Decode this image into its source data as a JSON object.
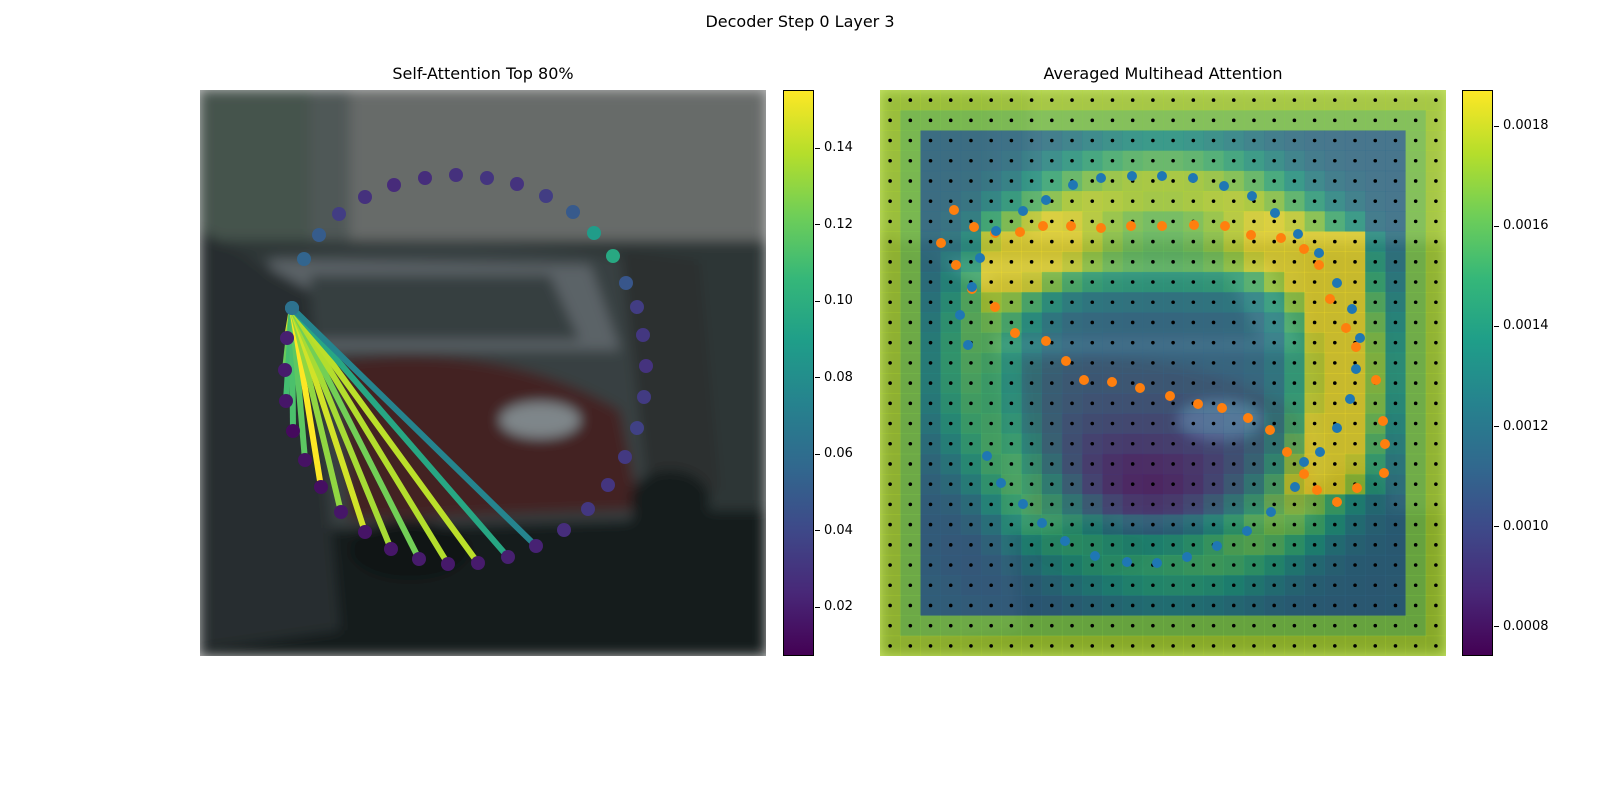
{
  "figure_title": "Decoder Step 0 Layer 3",
  "colors": {
    "viridis": [
      "#440154",
      "#482878",
      "#3e4989",
      "#31688e",
      "#26828e",
      "#1f9e89",
      "#35b779",
      "#6ece58",
      "#b5de2b",
      "#fde725"
    ],
    "query_points": "#1f77b4",
    "reference_points": "#ff7f0e",
    "grid_dots": "#000000"
  },
  "chart_data": [
    {
      "type": "scatter",
      "title": "Self-Attention Top 80%",
      "background": "camera-image-parked-cars",
      "source_query_index": 0,
      "queries": [
        {
          "x": 92,
          "y": 218,
          "weight": 0.062
        },
        {
          "x": 87,
          "y": 248,
          "weight": 0.02
        },
        {
          "x": 85,
          "y": 280,
          "weight": 0.018
        },
        {
          "x": 86,
          "y": 311,
          "weight": 0.016
        },
        {
          "x": 93,
          "y": 341,
          "weight": 0.011
        },
        {
          "x": 105,
          "y": 370,
          "weight": 0.014
        },
        {
          "x": 121,
          "y": 397,
          "weight": 0.013
        },
        {
          "x": 141,
          "y": 422,
          "weight": 0.016
        },
        {
          "x": 165,
          "y": 442,
          "weight": 0.015
        },
        {
          "x": 191,
          "y": 459,
          "weight": 0.016
        },
        {
          "x": 219,
          "y": 469,
          "weight": 0.018
        },
        {
          "x": 248,
          "y": 474,
          "weight": 0.017
        },
        {
          "x": 278,
          "y": 473,
          "weight": 0.018
        },
        {
          "x": 308,
          "y": 467,
          "weight": 0.02
        },
        {
          "x": 336,
          "y": 456,
          "weight": 0.021
        },
        {
          "x": 364,
          "y": 440,
          "weight": 0.026
        },
        {
          "x": 388,
          "y": 419,
          "weight": 0.031
        },
        {
          "x": 408,
          "y": 395,
          "weight": 0.03
        },
        {
          "x": 425,
          "y": 367,
          "weight": 0.032
        },
        {
          "x": 437,
          "y": 338,
          "weight": 0.036
        },
        {
          "x": 444,
          "y": 307,
          "weight": 0.033
        },
        {
          "x": 446,
          "y": 276,
          "weight": 0.029
        },
        {
          "x": 443,
          "y": 245,
          "weight": 0.031
        },
        {
          "x": 437,
          "y": 217,
          "weight": 0.034
        },
        {
          "x": 426,
          "y": 193,
          "weight": 0.047
        },
        {
          "x": 413,
          "y": 166,
          "weight": 0.096
        },
        {
          "x": 394,
          "y": 143,
          "weight": 0.088
        },
        {
          "x": 373,
          "y": 122,
          "weight": 0.049
        },
        {
          "x": 346,
          "y": 106,
          "weight": 0.034
        },
        {
          "x": 317,
          "y": 94,
          "weight": 0.029
        },
        {
          "x": 287,
          "y": 88,
          "weight": 0.03
        },
        {
          "x": 256,
          "y": 85,
          "weight": 0.028
        },
        {
          "x": 225,
          "y": 88,
          "weight": 0.026
        },
        {
          "x": 194,
          "y": 95,
          "weight": 0.025
        },
        {
          "x": 165,
          "y": 107,
          "weight": 0.028
        },
        {
          "x": 139,
          "y": 124,
          "weight": 0.034
        },
        {
          "x": 119,
          "y": 145,
          "weight": 0.05
        },
        {
          "x": 104,
          "y": 169,
          "weight": 0.055
        },
        {
          "x": 92,
          "y": 218,
          "weight": 0.062
        }
      ],
      "attention_lines": [
        {
          "target": 1,
          "weight": 0.148
        },
        {
          "target": 2,
          "weight": 0.12
        },
        {
          "target": 3,
          "weight": 0.11
        },
        {
          "target": 4,
          "weight": 0.112
        },
        {
          "target": 5,
          "weight": 0.117
        },
        {
          "target": 6,
          "weight": 0.155
        },
        {
          "target": 7,
          "weight": 0.13
        },
        {
          "target": 8,
          "weight": 0.145
        },
        {
          "target": 9,
          "weight": 0.135
        },
        {
          "target": 10,
          "weight": 0.123
        },
        {
          "target": 11,
          "weight": 0.138
        },
        {
          "target": 12,
          "weight": 0.14
        },
        {
          "target": 13,
          "weight": 0.095
        },
        {
          "target": 14,
          "weight": 0.074
        }
      ],
      "colorbar": {
        "min": 0.007,
        "max": 0.155,
        "ticks": [
          0.02,
          0.04,
          0.06,
          0.08,
          0.1,
          0.12,
          0.14
        ],
        "tick_labels": [
          "0.02",
          "0.04",
          "0.06",
          "0.08",
          "0.10",
          "0.12",
          "0.14"
        ]
      }
    },
    {
      "type": "heatmap",
      "title": "Averaged Multihead Attention",
      "background": "camera-image-parked-cars",
      "grid": {
        "rows": 28,
        "cols": 28
      },
      "query_points": [
        [
          88,
          255
        ],
        [
          80,
          225
        ],
        [
          92,
          197
        ],
        [
          100,
          168
        ],
        [
          116,
          141
        ],
        [
          143,
          121
        ],
        [
          166,
          110
        ],
        [
          193,
          95
        ],
        [
          221,
          88
        ],
        [
          252,
          86
        ],
        [
          282,
          86
        ],
        [
          313,
          88
        ],
        [
          344,
          96
        ],
        [
          372,
          106
        ],
        [
          395,
          123
        ],
        [
          418,
          144
        ],
        [
          439,
          163
        ],
        [
          457,
          193
        ],
        [
          472,
          219
        ],
        [
          480,
          248
        ],
        [
          476,
          279
        ],
        [
          470,
          309
        ],
        [
          457,
          338
        ],
        [
          440,
          362
        ],
        [
          424,
          372
        ],
        [
          415,
          397
        ],
        [
          391,
          422
        ],
        [
          367,
          441
        ],
        [
          337,
          456
        ],
        [
          307,
          467
        ],
        [
          277,
          473
        ],
        [
          247,
          472
        ],
        [
          215,
          466
        ],
        [
          185,
          451
        ],
        [
          162,
          433
        ],
        [
          143,
          414
        ],
        [
          121,
          393
        ],
        [
          107,
          366
        ]
      ],
      "reference_points": [
        [
          61,
          153
        ],
        [
          76,
          175
        ],
        [
          92,
          199
        ],
        [
          115,
          217
        ],
        [
          135,
          243
        ],
        [
          166,
          251
        ],
        [
          186,
          271
        ],
        [
          204,
          290
        ],
        [
          232,
          292
        ],
        [
          260,
          298
        ],
        [
          290,
          306
        ],
        [
          318,
          314
        ],
        [
          342,
          318
        ],
        [
          368,
          328
        ],
        [
          390,
          340
        ],
        [
          407,
          362
        ],
        [
          424,
          384
        ],
        [
          437,
          400
        ],
        [
          457,
          412
        ],
        [
          477,
          398
        ],
        [
          504,
          383
        ],
        [
          505,
          354
        ],
        [
          503,
          331
        ],
        [
          496,
          290
        ],
        [
          476,
          257
        ],
        [
          466,
          238
        ],
        [
          450,
          209
        ],
        [
          439,
          175
        ],
        [
          424,
          159
        ],
        [
          401,
          148
        ],
        [
          371,
          145
        ],
        [
          345,
          136
        ],
        [
          314,
          135
        ],
        [
          282,
          136
        ],
        [
          251,
          136
        ],
        [
          221,
          138
        ],
        [
          191,
          136
        ],
        [
          163,
          136
        ],
        [
          140,
          142
        ],
        [
          115,
          143
        ],
        [
          94,
          137
        ],
        [
          74,
          120
        ]
      ],
      "colorbar": {
        "min": 0.00074,
        "max": 0.00187,
        "ticks": [
          0.0008,
          0.001,
          0.0012,
          0.0014,
          0.0016,
          0.0018
        ],
        "tick_labels": [
          "0.0008",
          "0.0010",
          "0.0012",
          "0.0014",
          "0.0016",
          "0.0018"
        ]
      }
    }
  ]
}
